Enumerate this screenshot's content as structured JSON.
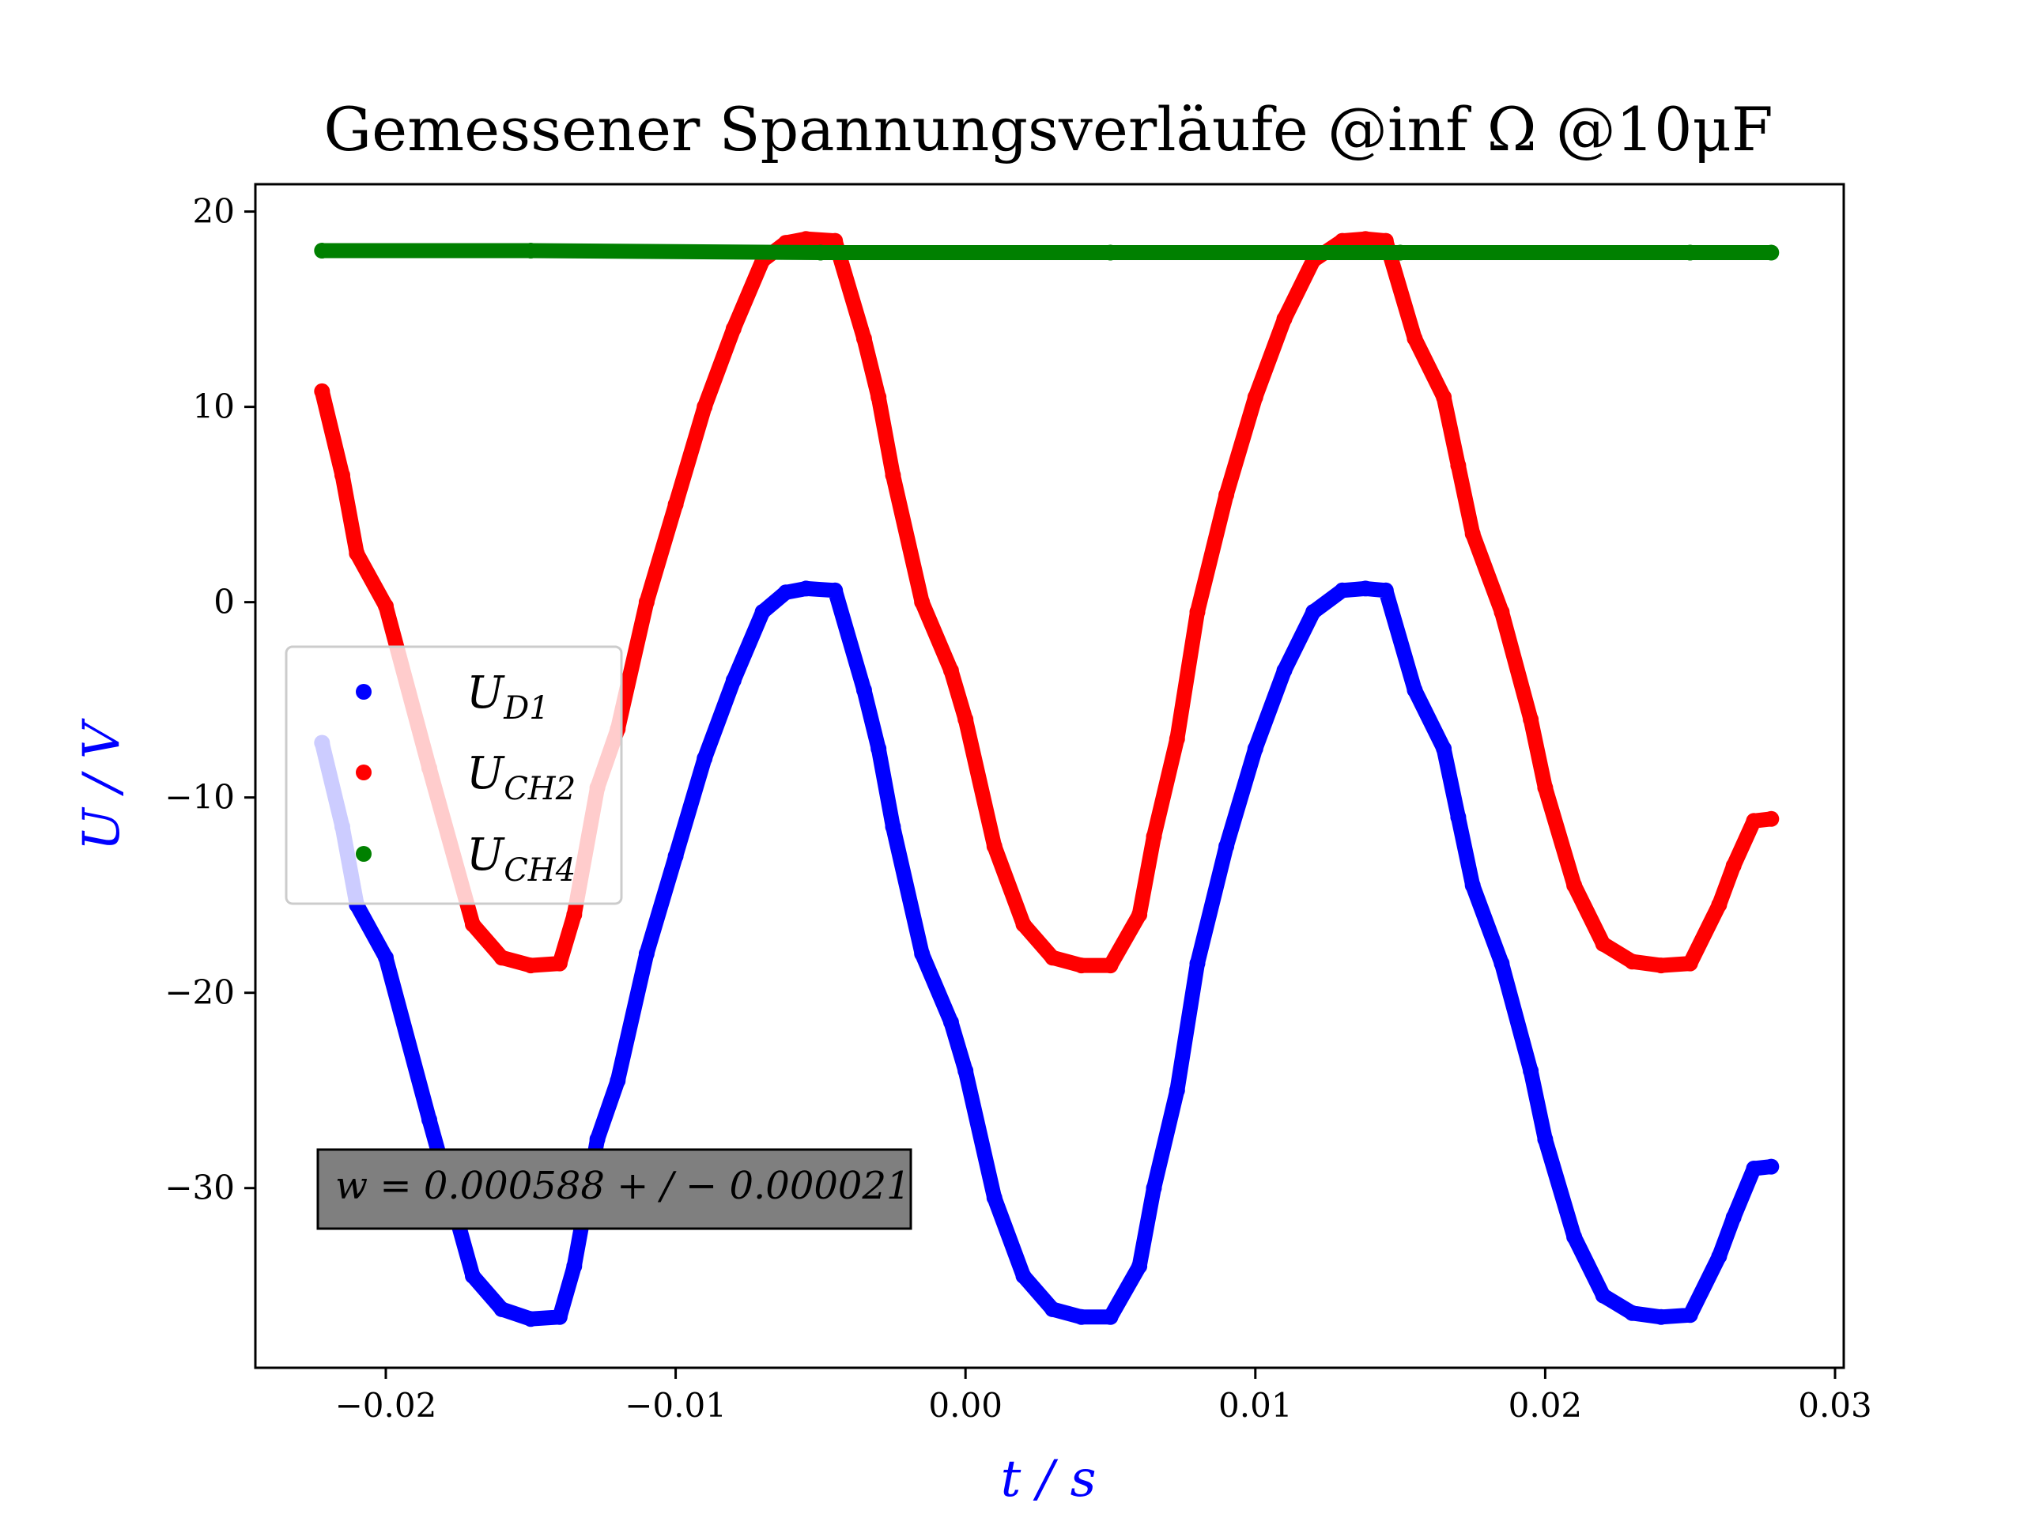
{
  "chart_data": {
    "type": "scatter",
    "title": "Gemessener Spannungsverläufe @inf Ω @10μF",
    "xlabel": "t / s",
    "ylabel": "U / V",
    "xlim": [
      -0.0245,
      0.0303
    ],
    "ylim": [
      -39.2,
      21.4
    ],
    "xticks": [
      -0.02,
      -0.01,
      0.0,
      0.01,
      0.02,
      0.03
    ],
    "xtick_labels": [
      "−0.02",
      "−0.01",
      "0.00",
      "0.01",
      "0.02",
      "0.03"
    ],
    "yticks": [
      20,
      10,
      0,
      -10,
      -20,
      -30
    ],
    "ytick_labels": [
      "20",
      "10",
      "0",
      "−10",
      "−20",
      "−30"
    ],
    "grid": false,
    "legend_position": "center-left",
    "annotation": "w = 0.000588 + / − 0.000021",
    "series": [
      {
        "name": "U_D1",
        "legend_main": "U",
        "legend_sub": "D1",
        "color": "#0000ff",
        "x": [
          -0.0222,
          -0.0215,
          -0.021,
          -0.02,
          -0.0185,
          -0.017,
          -0.016,
          -0.015,
          -0.014,
          -0.0135,
          -0.0127,
          -0.012,
          -0.011,
          -0.01,
          -0.009,
          -0.008,
          -0.007,
          -0.0062,
          -0.0055,
          -0.0045,
          -0.0035,
          -0.003,
          -0.0025,
          -0.0015,
          -0.0005,
          0.0,
          0.001,
          0.002,
          0.003,
          0.004,
          0.005,
          0.006,
          0.0065,
          0.0073,
          0.008,
          0.009,
          0.01,
          0.011,
          0.012,
          0.013,
          0.0138,
          0.0145,
          0.0155,
          0.0165,
          0.017,
          0.0175,
          0.0185,
          0.0195,
          0.02,
          0.021,
          0.022,
          0.023,
          0.024,
          0.025,
          0.026,
          0.0265,
          0.0272,
          0.0278
        ],
        "y": [
          -7.2,
          -11.5,
          -15.5,
          -18.2,
          -26.5,
          -34.5,
          -36.2,
          -36.7,
          -36.6,
          -34.0,
          -27.5,
          -24.5,
          -18.0,
          -13.0,
          -8.0,
          -4.0,
          -0.5,
          0.5,
          0.7,
          0.6,
          -4.5,
          -7.5,
          -11.5,
          -18.0,
          -21.5,
          -24.0,
          -30.5,
          -34.5,
          -36.2,
          -36.6,
          -36.6,
          -34.0,
          -30.0,
          -25.0,
          -18.5,
          -12.5,
          -7.5,
          -3.5,
          -0.5,
          0.6,
          0.7,
          0.6,
          -4.5,
          -7.5,
          -11.0,
          -14.5,
          -18.5,
          -24.0,
          -27.5,
          -32.5,
          -35.5,
          -36.4,
          -36.6,
          -36.5,
          -33.5,
          -31.5,
          -29.0,
          -28.9
        ]
      },
      {
        "name": "U_CH2",
        "legend_main": "U",
        "legend_sub": "CH2",
        "color": "#ff0000",
        "x": [
          -0.0222,
          -0.0215,
          -0.021,
          -0.02,
          -0.0185,
          -0.017,
          -0.016,
          -0.015,
          -0.014,
          -0.0135,
          -0.0127,
          -0.012,
          -0.011,
          -0.01,
          -0.009,
          -0.008,
          -0.007,
          -0.0062,
          -0.0055,
          -0.0045,
          -0.0035,
          -0.003,
          -0.0025,
          -0.0015,
          -0.0005,
          0.0,
          0.001,
          0.002,
          0.003,
          0.004,
          0.005,
          0.006,
          0.0065,
          0.0073,
          0.008,
          0.009,
          0.01,
          0.011,
          0.012,
          0.013,
          0.0138,
          0.0145,
          0.0155,
          0.0165,
          0.017,
          0.0175,
          0.0185,
          0.0195,
          0.02,
          0.021,
          0.022,
          0.023,
          0.024,
          0.025,
          0.026,
          0.0265,
          0.0272,
          0.0278
        ],
        "y": [
          10.8,
          6.5,
          2.5,
          -0.2,
          -8.5,
          -16.5,
          -18.2,
          -18.6,
          -18.5,
          -16.0,
          -9.5,
          -6.5,
          0.0,
          5.0,
          10.0,
          14.0,
          17.5,
          18.4,
          18.6,
          18.5,
          13.5,
          10.5,
          6.5,
          0.0,
          -3.5,
          -6.0,
          -12.5,
          -16.5,
          -18.2,
          -18.6,
          -18.6,
          -16.0,
          -12.0,
          -7.0,
          -0.5,
          5.5,
          10.5,
          14.5,
          17.5,
          18.5,
          18.6,
          18.5,
          13.5,
          10.5,
          7.0,
          3.5,
          -0.5,
          -6.0,
          -9.5,
          -14.5,
          -17.5,
          -18.4,
          -18.6,
          -18.5,
          -15.5,
          -13.5,
          -11.2,
          -11.1
        ]
      },
      {
        "name": "U_CH4",
        "legend_main": "U",
        "legend_sub": "CH4",
        "color": "#008000",
        "x": [
          -0.0222,
          -0.015,
          -0.005,
          0.005,
          0.015,
          0.025,
          0.0278
        ],
        "y": [
          18.0,
          18.0,
          17.9,
          17.9,
          17.9,
          17.9,
          17.9
        ]
      }
    ]
  }
}
